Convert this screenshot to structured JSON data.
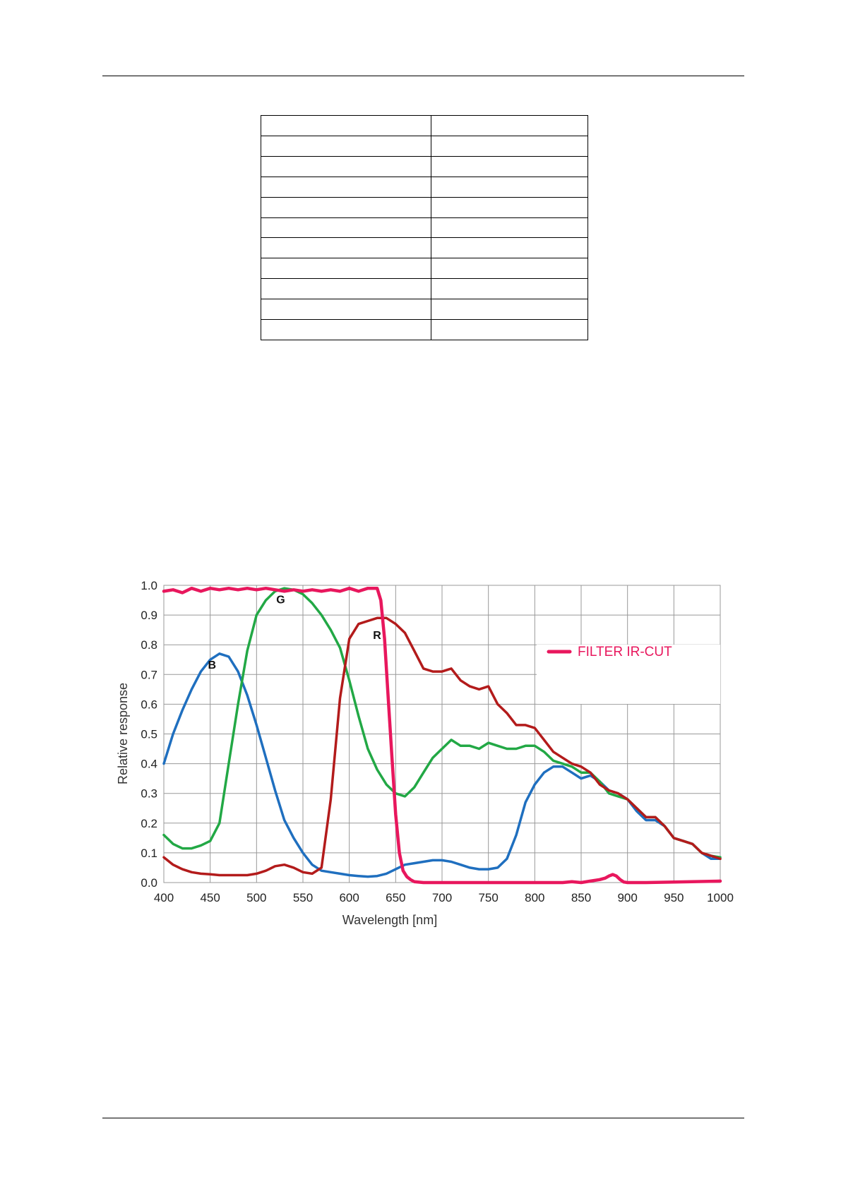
{
  "table": {
    "rows": [
      [
        "",
        ""
      ],
      [
        "",
        ""
      ],
      [
        "",
        ""
      ],
      [
        "",
        ""
      ],
      [
        "",
        ""
      ],
      [
        "",
        ""
      ],
      [
        "",
        ""
      ],
      [
        "",
        ""
      ],
      [
        "",
        ""
      ],
      [
        "",
        ""
      ],
      [
        "",
        ""
      ]
    ]
  },
  "chart_data": {
    "type": "line",
    "title": "",
    "xlabel": "Wavelength [nm]",
    "ylabel": "Relative response",
    "xlim": [
      400,
      1000
    ],
    "ylim": [
      0,
      1.0
    ],
    "xticks": [
      400,
      450,
      500,
      550,
      600,
      650,
      700,
      750,
      800,
      850,
      900,
      950,
      1000
    ],
    "yticks": [
      0.0,
      0.1,
      0.2,
      0.3,
      0.4,
      0.5,
      0.6,
      0.7,
      0.8,
      0.9,
      1.0
    ],
    "ytick_labels": [
      "0.0",
      "0.1",
      "0.2",
      "0.3",
      "0.4",
      "0.5",
      "0.6",
      "0.7",
      "0.8",
      "0.9",
      "1.0"
    ],
    "grid": true,
    "legend": {
      "position": "top-right",
      "entries": [
        {
          "label": "FILTER IR-CUT",
          "color": "#e8175d"
        }
      ]
    },
    "series": [
      {
        "name": "B",
        "color": "#1f6fbf",
        "label_at": [
          452,
          0.72
        ],
        "x": [
          400,
          410,
          420,
          430,
          440,
          450,
          460,
          470,
          480,
          490,
          500,
          510,
          520,
          530,
          540,
          550,
          560,
          570,
          580,
          590,
          600,
          610,
          620,
          630,
          640,
          650,
          660,
          670,
          680,
          690,
          700,
          710,
          720,
          730,
          740,
          750,
          760,
          770,
          780,
          790,
          800,
          810,
          820,
          830,
          840,
          850,
          860,
          870,
          880,
          890,
          900,
          910,
          920,
          930,
          940,
          950,
          960,
          970,
          980,
          990,
          1000
        ],
        "y": [
          0.4,
          0.5,
          0.58,
          0.65,
          0.71,
          0.75,
          0.77,
          0.76,
          0.71,
          0.63,
          0.53,
          0.42,
          0.31,
          0.21,
          0.15,
          0.1,
          0.06,
          0.04,
          0.035,
          0.03,
          0.025,
          0.022,
          0.02,
          0.022,
          0.03,
          0.045,
          0.06,
          0.065,
          0.07,
          0.075,
          0.075,
          0.07,
          0.06,
          0.05,
          0.045,
          0.045,
          0.05,
          0.08,
          0.16,
          0.27,
          0.33,
          0.37,
          0.39,
          0.39,
          0.37,
          0.35,
          0.36,
          0.34,
          0.31,
          0.3,
          0.28,
          0.24,
          0.21,
          0.21,
          0.19,
          0.15,
          0.14,
          0.13,
          0.1,
          0.08,
          0.08
        ]
      },
      {
        "name": "G",
        "color": "#22a845",
        "label_at": [
          526,
          0.94
        ],
        "x": [
          400,
          410,
          420,
          430,
          440,
          450,
          460,
          470,
          480,
          490,
          500,
          510,
          520,
          530,
          540,
          550,
          560,
          570,
          580,
          590,
          600,
          610,
          620,
          630,
          640,
          650,
          660,
          670,
          680,
          690,
          700,
          710,
          720,
          730,
          740,
          750,
          760,
          770,
          780,
          790,
          800,
          810,
          820,
          830,
          840,
          850,
          860,
          870,
          880,
          890,
          900,
          910,
          920,
          930,
          940,
          950,
          960,
          970,
          980,
          990,
          1000
        ],
        "y": [
          0.16,
          0.13,
          0.115,
          0.115,
          0.125,
          0.14,
          0.2,
          0.4,
          0.6,
          0.78,
          0.9,
          0.95,
          0.98,
          0.99,
          0.985,
          0.97,
          0.94,
          0.9,
          0.85,
          0.79,
          0.68,
          0.56,
          0.45,
          0.38,
          0.33,
          0.3,
          0.29,
          0.32,
          0.37,
          0.42,
          0.45,
          0.48,
          0.46,
          0.46,
          0.45,
          0.47,
          0.46,
          0.45,
          0.45,
          0.46,
          0.46,
          0.44,
          0.41,
          0.4,
          0.39,
          0.37,
          0.37,
          0.34,
          0.3,
          0.29,
          0.28,
          0.25,
          0.22,
          0.22,
          0.19,
          0.15,
          0.14,
          0.13,
          0.1,
          0.09,
          0.085
        ]
      },
      {
        "name": "R",
        "color": "#b31b1b",
        "label_at": [
          630,
          0.82
        ],
        "x": [
          400,
          410,
          420,
          430,
          440,
          450,
          460,
          470,
          480,
          490,
          500,
          510,
          520,
          530,
          540,
          550,
          560,
          570,
          580,
          590,
          600,
          610,
          620,
          630,
          640,
          650,
          660,
          670,
          680,
          690,
          700,
          710,
          720,
          730,
          740,
          750,
          760,
          770,
          780,
          790,
          800,
          810,
          820,
          830,
          840,
          850,
          860,
          870,
          880,
          890,
          900,
          910,
          920,
          930,
          940,
          950,
          960,
          970,
          980,
          990,
          1000
        ],
        "y": [
          0.085,
          0.06,
          0.045,
          0.035,
          0.03,
          0.028,
          0.025,
          0.025,
          0.025,
          0.025,
          0.03,
          0.04,
          0.055,
          0.06,
          0.05,
          0.035,
          0.03,
          0.05,
          0.28,
          0.62,
          0.82,
          0.87,
          0.88,
          0.89,
          0.89,
          0.87,
          0.84,
          0.78,
          0.72,
          0.71,
          0.71,
          0.72,
          0.68,
          0.66,
          0.65,
          0.66,
          0.6,
          0.57,
          0.53,
          0.53,
          0.52,
          0.48,
          0.44,
          0.42,
          0.4,
          0.39,
          0.37,
          0.33,
          0.31,
          0.3,
          0.28,
          0.25,
          0.22,
          0.22,
          0.19,
          0.15,
          0.14,
          0.13,
          0.1,
          0.09,
          0.08
        ]
      },
      {
        "name": "FILTER IR-CUT",
        "color": "#e8175d",
        "x": [
          400,
          410,
          420,
          430,
          440,
          450,
          460,
          470,
          480,
          490,
          500,
          510,
          520,
          530,
          540,
          550,
          560,
          570,
          580,
          590,
          600,
          610,
          620,
          630,
          634,
          638,
          642,
          646,
          650,
          654,
          658,
          662,
          666,
          670,
          680,
          690,
          700,
          750,
          800,
          830,
          840,
          850,
          860,
          870,
          876,
          880,
          884,
          888,
          892,
          896,
          900,
          910,
          920,
          950,
          1000
        ],
        "y": [
          0.98,
          0.985,
          0.975,
          0.99,
          0.98,
          0.99,
          0.985,
          0.99,
          0.985,
          0.99,
          0.985,
          0.99,
          0.985,
          0.98,
          0.985,
          0.98,
          0.985,
          0.98,
          0.985,
          0.98,
          0.99,
          0.98,
          0.99,
          0.99,
          0.95,
          0.82,
          0.62,
          0.42,
          0.23,
          0.1,
          0.04,
          0.02,
          0.01,
          0.003,
          0.0,
          0.0,
          0.0,
          0.0,
          0.0,
          0.0,
          0.003,
          0.0,
          0.005,
          0.01,
          0.015,
          0.022,
          0.027,
          0.022,
          0.01,
          0.002,
          0.0,
          0.0,
          0.0,
          0.002,
          0.005
        ]
      }
    ]
  }
}
